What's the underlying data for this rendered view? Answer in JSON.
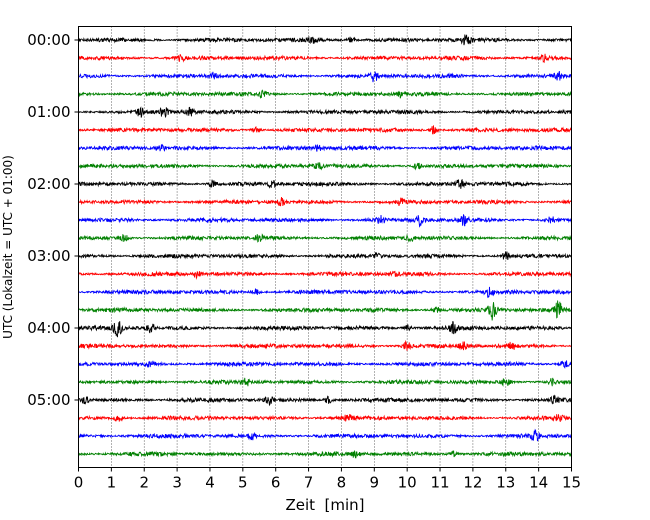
{
  "chart_data": {
    "type": "line",
    "title": "",
    "xlabel": "Zeit  [min]",
    "ylabel": "UTC (Lokalzeit = UTC + 01:00)",
    "xlim": [
      0,
      15
    ],
    "x_ticks": [
      0,
      1,
      2,
      3,
      4,
      5,
      6,
      7,
      8,
      9,
      10,
      11,
      12,
      13,
      14,
      15
    ],
    "y_tick_labels": [
      "00:00",
      "01:00",
      "02:00",
      "03:00",
      "04:00",
      "05:00"
    ],
    "grid": "vertical-dotted",
    "row_interval_minutes": 15,
    "row_colors": [
      "#000000",
      "#ff0000",
      "#0000ff",
      "#008000"
    ],
    "rows": [
      {
        "start": "00:00",
        "bursts": [
          {
            "t": 7.1,
            "a": 0.35
          },
          {
            "t": 8.3,
            "a": 0.3
          },
          {
            "t": 11.8,
            "a": 0.55
          }
        ]
      },
      {
        "start": "00:15",
        "bursts": [
          {
            "t": 3.1,
            "a": 0.3
          },
          {
            "t": 14.2,
            "a": 0.35
          }
        ]
      },
      {
        "start": "00:30",
        "bursts": [
          {
            "t": 4.1,
            "a": 0.3
          },
          {
            "t": 9.0,
            "a": 0.55
          },
          {
            "t": 14.6,
            "a": 0.4
          }
        ]
      },
      {
        "start": "00:45",
        "bursts": [
          {
            "t": 5.6,
            "a": 0.35
          },
          {
            "t": 9.8,
            "a": 0.3
          }
        ]
      },
      {
        "start": "01:00",
        "bursts": [
          {
            "t": 1.9,
            "a": 0.45
          },
          {
            "t": 2.6,
            "a": 0.5
          },
          {
            "t": 3.4,
            "a": 0.35
          }
        ]
      },
      {
        "start": "01:15",
        "bursts": [
          {
            "t": 5.4,
            "a": 0.3
          },
          {
            "t": 10.8,
            "a": 0.45
          }
        ]
      },
      {
        "start": "01:30",
        "bursts": [
          {
            "t": 2.5,
            "a": 0.3
          },
          {
            "t": 7.3,
            "a": 0.35
          }
        ]
      },
      {
        "start": "01:45",
        "bursts": [
          {
            "t": 7.3,
            "a": 0.3
          },
          {
            "t": 10.3,
            "a": 0.3
          }
        ]
      },
      {
        "start": "02:00",
        "bursts": [
          {
            "t": 4.1,
            "a": 0.45
          },
          {
            "t": 5.9,
            "a": 0.35
          },
          {
            "t": 11.6,
            "a": 0.45
          }
        ]
      },
      {
        "start": "02:15",
        "bursts": [
          {
            "t": 6.2,
            "a": 0.4
          },
          {
            "t": 9.8,
            "a": 0.4
          }
        ]
      },
      {
        "start": "02:30",
        "bursts": [
          {
            "t": 9.2,
            "a": 0.35
          },
          {
            "t": 10.4,
            "a": 0.6
          },
          {
            "t": 11.7,
            "a": 0.6
          },
          {
            "t": 14.4,
            "a": 0.35
          }
        ]
      },
      {
        "start": "02:45",
        "bursts": [
          {
            "t": 1.4,
            "a": 0.35
          },
          {
            "t": 5.5,
            "a": 0.35
          },
          {
            "t": 10.1,
            "a": 0.3
          }
        ]
      },
      {
        "start": "03:00",
        "bursts": [
          {
            "t": 9.1,
            "a": 0.3
          },
          {
            "t": 13.0,
            "a": 0.45
          }
        ]
      },
      {
        "start": "03:15",
        "bursts": [
          {
            "t": 3.6,
            "a": 0.35
          },
          {
            "t": 9.6,
            "a": 0.35
          }
        ]
      },
      {
        "start": "03:30",
        "bursts": [
          {
            "t": 5.4,
            "a": 0.3
          },
          {
            "t": 12.5,
            "a": 0.4
          }
        ]
      },
      {
        "start": "03:45",
        "bursts": [
          {
            "t": 12.6,
            "a": 1.0
          },
          {
            "t": 14.6,
            "a": 0.9
          },
          {
            "t": 10.9,
            "a": 0.3
          }
        ]
      },
      {
        "start": "04:00",
        "bursts": [
          {
            "t": 1.2,
            "a": 0.9
          },
          {
            "t": 2.2,
            "a": 0.45
          },
          {
            "t": 10.0,
            "a": 0.4
          },
          {
            "t": 11.4,
            "a": 0.55
          }
        ]
      },
      {
        "start": "04:15",
        "bursts": [
          {
            "t": 10.0,
            "a": 0.45
          },
          {
            "t": 11.7,
            "a": 0.4
          },
          {
            "t": 13.2,
            "a": 0.35
          }
        ]
      },
      {
        "start": "04:30",
        "bursts": [
          {
            "t": 2.2,
            "a": 0.3
          },
          {
            "t": 14.8,
            "a": 0.45
          }
        ]
      },
      {
        "start": "04:45",
        "bursts": [
          {
            "t": 5.1,
            "a": 0.35
          },
          {
            "t": 13.0,
            "a": 0.4
          },
          {
            "t": 14.4,
            "a": 0.35
          }
        ]
      },
      {
        "start": "05:00",
        "bursts": [
          {
            "t": 0.2,
            "a": 0.35
          },
          {
            "t": 5.8,
            "a": 0.4
          },
          {
            "t": 7.6,
            "a": 0.35
          },
          {
            "t": 14.5,
            "a": 0.3
          }
        ]
      },
      {
        "start": "05:15",
        "bursts": [
          {
            "t": 1.2,
            "a": 0.35
          },
          {
            "t": 8.2,
            "a": 0.3
          },
          {
            "t": 14.6,
            "a": 0.35
          }
        ]
      },
      {
        "start": "05:30",
        "bursts": [
          {
            "t": 5.3,
            "a": 0.3
          },
          {
            "t": 13.9,
            "a": 0.45
          }
        ]
      },
      {
        "start": "05:45",
        "bursts": [
          {
            "t": 8.4,
            "a": 0.3
          },
          {
            "t": 11.4,
            "a": 0.3
          }
        ]
      }
    ]
  }
}
